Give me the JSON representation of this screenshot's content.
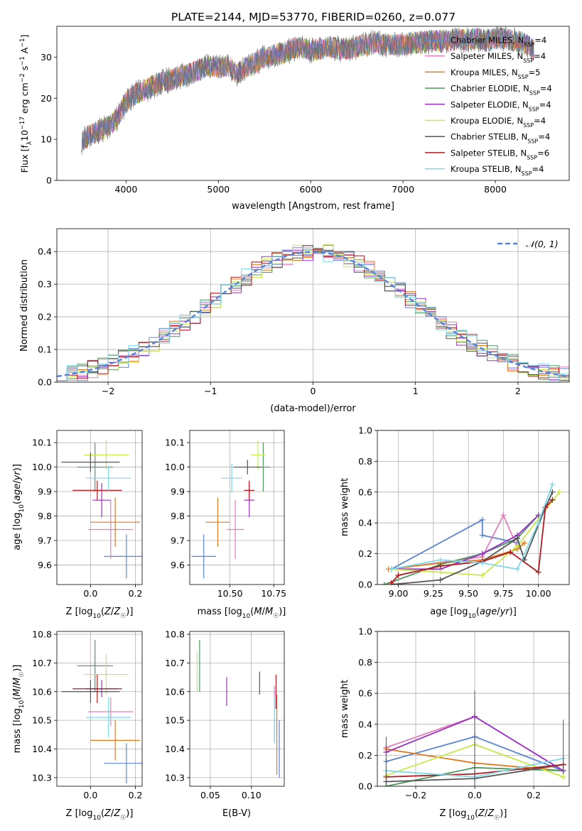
{
  "figure_title": "PLATE=2144, MJD=53770, FIBERID=0260, z=0.077",
  "models": [
    {
      "name": "Chabrier MILES",
      "label_main": "Chabrier MILES, N",
      "label_sub": "SSP",
      "label_end": "=4",
      "color": "#5b84d6"
    },
    {
      "name": "Salpeter MILES",
      "label_main": "Salpeter MILES, N",
      "label_sub": "SSP",
      "label_end": "=4",
      "color": "#e57ebc"
    },
    {
      "name": "Kroupa MILES",
      "label_main": "Kroupa MILES, N",
      "label_sub": "SSP",
      "label_end": "=5",
      "color": "#e07b22"
    },
    {
      "name": "Chabrier ELODIE",
      "label_main": "Chabrier ELODIE, N",
      "label_sub": "SSP",
      "label_end": "=4",
      "color": "#4c9a5c"
    },
    {
      "name": "Salpeter ELODIE",
      "label_main": "Salpeter ELODIE, N",
      "label_sub": "SSP",
      "label_end": "=4",
      "color": "#9b32c8"
    },
    {
      "name": "Kroupa ELODIE",
      "label_main": "Kroupa ELODIE, N",
      "label_sub": "SSP",
      "label_end": "=4",
      "color": "#c7ea4a"
    },
    {
      "name": "Chabrier STELIB",
      "label_main": "Chabrier STELIB, N",
      "label_sub": "SSP",
      "label_end": "=4",
      "color": "#555555"
    },
    {
      "name": "Salpeter STELIB",
      "label_main": "Salpeter STELIB, N",
      "label_sub": "SSP",
      "label_end": "=6",
      "color": "#b0191f"
    },
    {
      "name": "Kroupa STELIB",
      "label_main": "Kroupa STELIB, N",
      "label_sub": "SSP",
      "label_end": "=4",
      "color": "#7fd9e8"
    }
  ],
  "chart_data": [
    {
      "id": "spectrum",
      "type": "line",
      "xlabel": "wavelength [Angstrom, rest frame]",
      "ylabel": "Flux [f_λ 10^-17 erg cm^-2 s^-1 A^-1]",
      "xlim": [
        3250,
        8800
      ],
      "ylim": [
        0,
        37.5
      ],
      "xticks": [
        4000,
        5000,
        6000,
        7000,
        8000
      ],
      "yticks": [
        0,
        10,
        20,
        30
      ],
      "legend": "right",
      "grid": false,
      "x": [
        3500,
        3600,
        3700,
        3800,
        3900,
        4000,
        4100,
        4200,
        4300,
        4400,
        4500,
        4600,
        4700,
        4800,
        4900,
        5000,
        5100,
        5200,
        5300,
        5400,
        5500,
        5600,
        5700,
        5800,
        5900,
        6000,
        6100,
        6200,
        6300,
        6400,
        6500,
        6600,
        6700,
        6800,
        6900,
        7000,
        7100,
        7200,
        7300,
        7400,
        7500,
        7600,
        7700,
        7800,
        7900,
        8000,
        8100,
        8200,
        8300,
        8400
      ],
      "y": [
        9,
        11,
        12,
        13,
        15,
        19,
        21,
        22,
        23,
        24,
        24.5,
        25.5,
        26,
        27,
        28,
        27.5,
        28,
        26,
        27.5,
        28.5,
        30,
        30.5,
        31,
        32,
        32.5,
        31.5,
        32,
        32.5,
        32,
        32,
        32.5,
        33,
        33.5,
        33,
        33,
        33,
        33.5,
        33.5,
        34,
        34,
        34,
        34.5,
        34,
        34.5,
        34,
        34.5,
        34.5,
        34,
        33.5,
        32
      ]
    },
    {
      "id": "residual-histogram",
      "type": "bar",
      "xlabel": "(data-model)/error",
      "ylabel": "Normed distribution",
      "xlim": [
        -2.5,
        2.5
      ],
      "ylim": [
        0,
        0.47
      ],
      "xticks": [
        -2,
        -1,
        0,
        1,
        2
      ],
      "yticks": [
        0.0,
        0.1,
        0.2,
        0.3,
        0.4
      ],
      "legend": "top-right",
      "grid": true,
      "reference_curve": {
        "name": "N(0,1)",
        "label": "𝒩(0, 1)",
        "color": "#5b84d6",
        "mean": 0,
        "sigma": 1
      }
    },
    {
      "id": "age-vs-z",
      "type": "scatter",
      "xlabel": "Z [log10(Z/Z☉)]",
      "ylabel": "age [log10(age/yr)]",
      "xlim": [
        -0.15,
        0.23
      ],
      "ylim": [
        9.52,
        10.15
      ],
      "xticks": [
        -0.0,
        0.2
      ],
      "xticklabels": [
        "0.0",
        "0.2"
      ],
      "yticks": [
        9.6,
        9.7,
        9.8,
        9.9,
        10.0,
        10.1
      ],
      "grid": true,
      "points": [
        {
          "model": "Chabrier MILES",
          "x": 0.16,
          "y": 9.635,
          "xerr": 0.1,
          "yerr": 0.09
        },
        {
          "model": "Salpeter MILES",
          "x": 0.09,
          "y": 9.745,
          "xerr": 0.1,
          "yerr": 0.12
        },
        {
          "model": "Kroupa MILES",
          "x": 0.11,
          "y": 9.775,
          "xerr": 0.11,
          "yerr": 0.1
        },
        {
          "model": "Chabrier ELODIE",
          "x": 0.02,
          "y": 10.0,
          "xerr": 0.08,
          "yerr": 0.1
        },
        {
          "model": "Salpeter ELODIE",
          "x": 0.05,
          "y": 9.865,
          "xerr": 0.04,
          "yerr": 0.07
        },
        {
          "model": "Kroupa ELODIE",
          "x": 0.07,
          "y": 10.05,
          "xerr": 0.1,
          "yerr": 0.06
        },
        {
          "model": "Chabrier STELIB",
          "x": 0.0,
          "y": 10.02,
          "xerr": 0.13,
          "yerr": 0.04
        },
        {
          "model": "Salpeter STELIB",
          "x": 0.03,
          "y": 9.905,
          "xerr": 0.11,
          "yerr": 0.04
        },
        {
          "model": "Kroupa STELIB",
          "x": 0.08,
          "y": 9.955,
          "xerr": 0.1,
          "yerr": 0.05
        }
      ]
    },
    {
      "id": "age-vs-mass",
      "type": "scatter",
      "xlabel": "mass [log10(M/M☉)]",
      "ylabel": "",
      "xlim": [
        10.27,
        10.81
      ],
      "ylim": [
        9.52,
        10.15
      ],
      "xticks": [
        10.5,
        10.75
      ],
      "xticklabels": [
        "10.50",
        "10.75"
      ],
      "yticks": [
        9.6,
        9.7,
        9.8,
        9.9,
        10.0,
        10.1
      ],
      "grid": true,
      "points": [
        {
          "model": "Chabrier MILES",
          "x": 10.35,
          "y": 9.635,
          "xerr": 0.07,
          "yerr": 0.09
        },
        {
          "model": "Salpeter MILES",
          "x": 10.53,
          "y": 9.745,
          "xerr": 0.05,
          "yerr": 0.12
        },
        {
          "model": "Kroupa MILES",
          "x": 10.43,
          "y": 9.775,
          "xerr": 0.07,
          "yerr": 0.1
        },
        {
          "model": "Chabrier ELODIE",
          "x": 10.69,
          "y": 10.0,
          "xerr": 0.04,
          "yerr": 0.1
        },
        {
          "model": "Salpeter ELODIE",
          "x": 10.61,
          "y": 9.865,
          "xerr": 0.03,
          "yerr": 0.07
        },
        {
          "model": "Kroupa ELODIE",
          "x": 10.66,
          "y": 10.05,
          "xerr": 0.04,
          "yerr": 0.06
        },
        {
          "model": "Chabrier STELIB",
          "x": 10.6,
          "y": 10.0,
          "xerr": 0.08,
          "yerr": 0.03
        },
        {
          "model": "Salpeter STELIB",
          "x": 10.61,
          "y": 9.905,
          "xerr": 0.03,
          "yerr": 0.04
        },
        {
          "model": "Kroupa STELIB",
          "x": 10.51,
          "y": 9.955,
          "xerr": 0.06,
          "yerr": 0.06
        }
      ]
    },
    {
      "id": "weight-vs-age",
      "type": "line",
      "xlabel": "age [log10(age/yr)]",
      "ylabel": "mass weight",
      "xlim": [
        8.85,
        10.22
      ],
      "ylim": [
        0,
        1.0
      ],
      "xticks": [
        9.0,
        9.25,
        9.5,
        9.75,
        10.0
      ],
      "xticklabels": [
        "9.00",
        "9.25",
        "9.50",
        "9.75",
        "10.00"
      ],
      "yticks": [
        0.0,
        0.2,
        0.4,
        0.6,
        0.8,
        1.0
      ],
      "grid": true,
      "series": [
        {
          "model": "Chabrier MILES",
          "x": [
            8.95,
            9.6,
            9.6,
            9.85
          ],
          "y": [
            0.1,
            0.42,
            0.32,
            0.27
          ]
        },
        {
          "model": "Salpeter MILES",
          "x": [
            8.95,
            9.6,
            9.75,
            9.85
          ],
          "y": [
            0.1,
            0.18,
            0.45,
            0.24
          ]
        },
        {
          "model": "Kroupa MILES",
          "x": [
            8.93,
            9.3,
            9.6,
            9.85,
            9.9
          ],
          "y": [
            0.1,
            0.14,
            0.16,
            0.23,
            0.27
          ]
        },
        {
          "model": "Chabrier ELODIE",
          "x": [
            8.9,
            9.3,
            9.6,
            9.85,
            10.0
          ],
          "y": [
            0.0,
            0.13,
            0.2,
            0.3,
            0.45
          ]
        },
        {
          "model": "Salpeter ELODIE",
          "x": [
            8.95,
            9.3,
            9.6,
            9.85,
            10.0
          ],
          "y": [
            0.1,
            0.1,
            0.2,
            0.32,
            0.45
          ]
        },
        {
          "model": "Kroupa ELODIE",
          "x": [
            8.95,
            9.3,
            9.6,
            9.85,
            10.15
          ],
          "y": [
            0.1,
            0.08,
            0.06,
            0.25,
            0.6
          ]
        },
        {
          "model": "Chabrier STELIB",
          "x": [
            8.95,
            9.3,
            9.6,
            9.85,
            9.9,
            10.05,
            10.1
          ],
          "y": [
            0.0,
            0.03,
            0.15,
            0.3,
            0.16,
            0.5,
            0.6
          ]
        },
        {
          "model": "Salpeter STELIB",
          "x": [
            8.95,
            9.0,
            9.3,
            9.6,
            9.8,
            10.0,
            10.05,
            10.1
          ],
          "y": [
            0.01,
            0.06,
            0.12,
            0.15,
            0.21,
            0.08,
            0.5,
            0.55
          ]
        },
        {
          "model": "Kroupa STELIB",
          "x": [
            8.95,
            9.3,
            9.6,
            9.85,
            10.0,
            10.1
          ],
          "y": [
            0.1,
            0.16,
            0.14,
            0.1,
            0.4,
            0.65
          ]
        }
      ]
    },
    {
      "id": "mass-vs-z",
      "type": "scatter",
      "xlabel": "Z [log10(Z/Z☉)]",
      "ylabel": "mass [log10(M/M☉)]",
      "xlim": [
        -0.15,
        0.23
      ],
      "ylim": [
        10.27,
        10.81
      ],
      "xticks": [
        0.0,
        0.2
      ],
      "xticklabels": [
        "0.0",
        "0.2"
      ],
      "yticks": [
        10.3,
        10.4,
        10.5,
        10.6,
        10.7,
        10.8
      ],
      "grid": true,
      "points": [
        {
          "model": "Chabrier MILES",
          "x": 0.16,
          "y": 10.35,
          "xerr": 0.1,
          "yerr": 0.07
        },
        {
          "model": "Salpeter MILES",
          "x": 0.09,
          "y": 10.53,
          "xerr": 0.1,
          "yerr": 0.05
        },
        {
          "model": "Kroupa MILES",
          "x": 0.11,
          "y": 10.43,
          "xerr": 0.11,
          "yerr": 0.07
        },
        {
          "model": "Chabrier ELODIE",
          "x": 0.02,
          "y": 10.69,
          "xerr": 0.08,
          "yerr": 0.09
        },
        {
          "model": "Salpeter ELODIE",
          "x": 0.05,
          "y": 10.61,
          "xerr": 0.07,
          "yerr": 0.03
        },
        {
          "model": "Kroupa ELODIE",
          "x": 0.07,
          "y": 10.66,
          "xerr": 0.1,
          "yerr": 0.07
        },
        {
          "model": "Chabrier STELIB",
          "x": 0.0,
          "y": 10.6,
          "xerr": 0.13,
          "yerr": 0.04
        },
        {
          "model": "Salpeter STELIB",
          "x": 0.03,
          "y": 10.61,
          "xerr": 0.11,
          "yerr": 0.05
        },
        {
          "model": "Kroupa STELIB",
          "x": 0.08,
          "y": 10.51,
          "xerr": 0.1,
          "yerr": 0.07
        }
      ]
    },
    {
      "id": "mass-vs-ebv",
      "type": "scatter",
      "xlabel": "E(B-V)",
      "ylabel": "",
      "xlim": [
        0.025,
        0.14
      ],
      "ylim": [
        10.27,
        10.81
      ],
      "xticks": [
        0.05,
        0.1
      ],
      "xticklabels": [
        "0.05",
        "0.10"
      ],
      "yticks": [
        10.3,
        10.4,
        10.5,
        10.6,
        10.7,
        10.8
      ],
      "grid": true,
      "points": [
        {
          "model": "Chabrier MILES",
          "x": 0.134,
          "y": 10.4,
          "xerr": 0,
          "yerr": 0.1
        },
        {
          "model": "Salpeter MILES",
          "x": 0.128,
          "y": 10.52,
          "xerr": 0,
          "yerr": 0.1
        },
        {
          "model": "Kroupa MILES",
          "x": 0.131,
          "y": 10.45,
          "xerr": 0,
          "yerr": 0.14
        },
        {
          "model": "Chabrier ELODIE",
          "x": 0.037,
          "y": 10.69,
          "xerr": 0,
          "yerr": 0.09
        },
        {
          "model": "Salpeter ELODIE",
          "x": 0.07,
          "y": 10.6,
          "xerr": 0,
          "yerr": 0.05
        },
        {
          "model": "Kroupa ELODIE",
          "x": 0.034,
          "y": 10.67,
          "xerr": 0,
          "yerr": 0.07
        },
        {
          "model": "Chabrier STELIB",
          "x": 0.11,
          "y": 10.63,
          "xerr": 0,
          "yerr": 0.04
        },
        {
          "model": "Salpeter STELIB",
          "x": 0.13,
          "y": 10.6,
          "xerr": 0,
          "yerr": 0.06
        },
        {
          "model": "Kroupa STELIB",
          "x": 0.128,
          "y": 10.5,
          "xerr": 0,
          "yerr": 0.08
        }
      ]
    },
    {
      "id": "weight-vs-z",
      "type": "line",
      "xlabel": "Z [log10(Z/Z☉)]",
      "ylabel": "mass weight",
      "xlim": [
        -0.33,
        0.32
      ],
      "ylim": [
        0,
        1.0
      ],
      "xticks": [
        -0.2,
        0.0,
        0.2
      ],
      "xticklabels": [
        "−0.2",
        "0.0",
        "0.2"
      ],
      "yticks": [
        0.0,
        0.2,
        0.4,
        0.6,
        0.8,
        1.0
      ],
      "grid": true,
      "series": [
        {
          "model": "Chabrier MILES",
          "x": [
            -0.3,
            0.0,
            0.3
          ],
          "y": [
            0.16,
            0.32,
            0.1
          ]
        },
        {
          "model": "Salpeter MILES",
          "x": [
            -0.3,
            0.0,
            0.3
          ],
          "y": [
            0.25,
            0.45,
            0.1
          ]
        },
        {
          "model": "Kroupa MILES",
          "x": [
            -0.3,
            0.0,
            0.3
          ],
          "y": [
            0.24,
            0.15,
            0.1
          ]
        },
        {
          "model": "Chabrier ELODIE",
          "x": [
            -0.3,
            0.0,
            0.3
          ],
          "y": [
            0.0,
            0.12,
            0.1
          ]
        },
        {
          "model": "Salpeter ELODIE",
          "x": [
            -0.3,
            0.0,
            0.3
          ],
          "y": [
            0.22,
            0.45,
            0.1
          ]
        },
        {
          "model": "Kroupa ELODIE",
          "x": [
            -0.3,
            0.0,
            0.3
          ],
          "y": [
            0.07,
            0.27,
            0.06
          ]
        },
        {
          "model": "Chabrier STELIB",
          "x": [
            -0.3,
            0.0,
            0.3
          ],
          "y": [
            0.03,
            0.05,
            0.14
          ]
        },
        {
          "model": "Salpeter STELIB",
          "x": [
            -0.3,
            0.0,
            0.3
          ],
          "y": [
            0.06,
            0.08,
            0.14
          ]
        },
        {
          "model": "Kroupa STELIB",
          "x": [
            -0.3,
            0.0,
            0.3
          ],
          "y": [
            0.1,
            0.06,
            0.18
          ]
        }
      ]
    }
  ]
}
